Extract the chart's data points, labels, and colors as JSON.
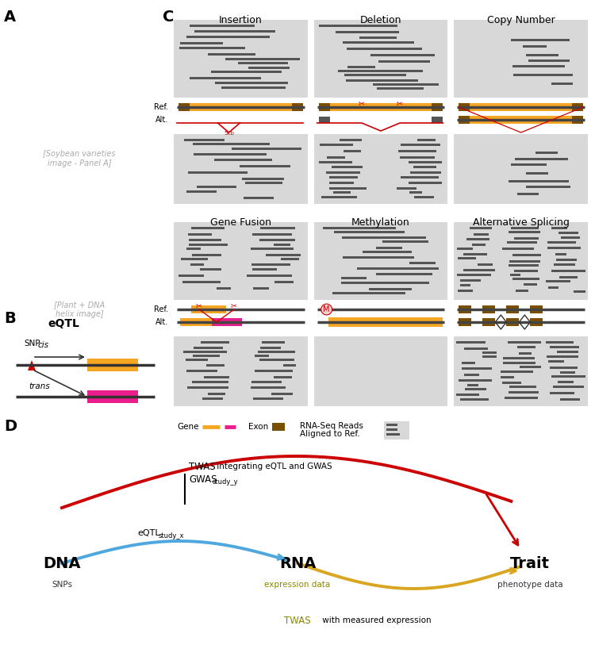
{
  "panel_A_label": "A",
  "panel_B_label": "B",
  "panel_C_label": "C",
  "panel_D_label": "D",
  "panel_C_titles": [
    "Insertion",
    "Deletion",
    "Copy Number",
    "Gene Fusion",
    "Methylation",
    "Alternative Splicing"
  ],
  "bg_color": "#d8d8d8",
  "orange_gene": "#F5A623",
  "dark_exon": "#7B4F00",
  "magenta_gene": "#E91E8C",
  "red_color": "#CC0000",
  "blue_color": "#4EA8DE",
  "gold_color": "#DAA520",
  "dark_gray": "#404040",
  "read_color": "#555555",
  "dna_label": "DNA",
  "rna_label": "RNA",
  "trait_label": "Trait",
  "snps_label": "SNPs",
  "expr_label": "expression data",
  "pheno_label": "phenotype data",
  "twas_label1": "TWAS",
  "twas_label1b": " integrating eQTL and GWAS",
  "gwas_label": "GWAS",
  "gwas_sub": "study_y",
  "eqtl_label": "eQTL",
  "eqtl_sub": "study_x",
  "twas_label2": "TWAS",
  "twas_label2b": " with measured expression"
}
